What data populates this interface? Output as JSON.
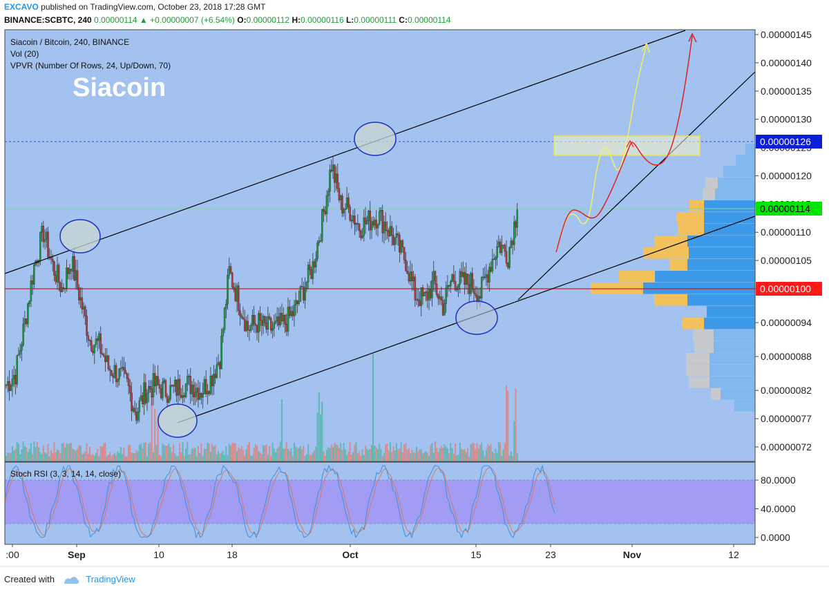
{
  "header": {
    "brand": "EXCAVO",
    "published": "published on TradingView.com, October 23, 2018 17:28 GMT",
    "symbol": "BINANCE:SCBTC, 240",
    "price": "0.00000114",
    "change": "+0.00000007 (+6.54%)",
    "o_label": "O:",
    "o_value": "0.00000112",
    "h_label": "H:",
    "h_value": "0.00000116",
    "l_label": "L:",
    "l_value": "0.00000111",
    "c_label": "C:",
    "c_value": "0.00000114"
  },
  "legend": {
    "line1": "Siacoin / Bitcoin, 240, BINANCE",
    "line2": "Vol (20)",
    "line3": "VPVR (Number Of Rows, 24, Up/Down, 70)"
  },
  "annotation_title": "Siacoin",
  "footer": {
    "created_with": "Created with",
    "brand": "TradingView"
  },
  "colors": {
    "plot_bg": "#a4c2f0",
    "candle_up": "#1a9641",
    "candle_down": "#b03a3a",
    "vpvr_up": "#3d9ae8",
    "vpvr_down": "#f2c15c",
    "vpvr_up_light": "#80b8ef",
    "vpvr_down_light": "#c7c9cc",
    "current_price_tag": "#00e600",
    "level_126_tag": "#0b1fd9",
    "level_100_tag": "#ff1a1a",
    "rsi_band": "#a39cf4",
    "stoch_k": "#3e8fe0",
    "stoch_d": "#d97a5a",
    "arrow_yellow": "#f3f061",
    "arrow_red": "#e02020"
  },
  "chart_data": [
    {
      "type": "candlestick",
      "title": "Siacoin / Bitcoin, 240, BINANCE",
      "x_ticks": [
        ":00",
        "Sep",
        "10",
        "18",
        "Oct",
        "15",
        "23",
        "Nov",
        "12"
      ],
      "y_ticks": [
        "0.00000072",
        "0.00000077",
        "0.00000082",
        "0.00000088",
        "0.00000094",
        "0.00000100",
        "0.00000105",
        "0.00000110",
        "0.00000115",
        "0.00000120",
        "0.00000125",
        "0.00000130",
        "0.00000135",
        "0.00000140",
        "0.00000145"
      ],
      "ylim": [
        7e-07,
        1.46e-06
      ],
      "price_labels": {
        "current": "0.00000114",
        "resistance": "0.00000126",
        "support": "0.00000100"
      },
      "path_points_date_close": [
        [
          "Aug 29",
          8.3e-07
        ],
        [
          "Aug 30",
          8.5e-07
        ],
        [
          "Aug 31",
          9.4e-07
        ],
        [
          "Sep 1",
          1.04e-06
        ],
        [
          "Sep 2",
          1.1e-06
        ],
        [
          "Sep 3",
          1.04e-06
        ],
        [
          "Sep 4",
          1e-06
        ],
        [
          "Sep 5",
          1.05e-06
        ],
        [
          "Sep 6",
          9.8e-07
        ],
        [
          "Sep 7",
          9.1e-07
        ],
        [
          "Sep 8",
          9e-07
        ],
        [
          "Sep 9",
          8.6e-07
        ],
        [
          "Sep 10",
          8.5e-07
        ],
        [
          "Sep 11",
          8.3e-07
        ],
        [
          "Sep 12",
          7.8e-07
        ],
        [
          "Sep 13",
          8.2e-07
        ],
        [
          "Sep 14",
          8.3e-07
        ],
        [
          "Sep 15",
          8.2e-07
        ],
        [
          "Sep 16",
          8.2e-07
        ],
        [
          "Sep 17",
          8.3e-07
        ],
        [
          "Sep 18",
          8.3e-07
        ],
        [
          "Sep 19",
          8.2e-07
        ],
        [
          "Sep 20",
          8.4e-07
        ],
        [
          "Sep 21",
          8.8e-07
        ],
        [
          "Sep 22",
          1.03e-06
        ],
        [
          "Sep 23",
          9.8e-07
        ],
        [
          "Sep 24",
          9.3e-07
        ],
        [
          "Sep 25",
          9.4e-07
        ],
        [
          "Sep 26",
          9.3e-07
        ],
        [
          "Sep 27",
          9.3e-07
        ],
        [
          "Sep 28",
          9.4e-07
        ],
        [
          "Sep 29",
          9.6e-07
        ],
        [
          "Sep 30",
          1e-06
        ],
        [
          "Oct 1",
          1.04e-06
        ],
        [
          "Oct 2",
          1.12e-06
        ],
        [
          "Oct 3",
          1.22e-06
        ],
        [
          "Oct 4",
          1.15e-06
        ],
        [
          "Oct 5",
          1.14e-06
        ],
        [
          "Oct 6",
          1.11e-06
        ],
        [
          "Oct 7",
          1.12e-06
        ],
        [
          "Oct 8",
          1.13e-06
        ],
        [
          "Oct 9",
          1.11e-06
        ],
        [
          "Oct 10",
          1.08e-06
        ],
        [
          "Oct 11",
          1.05e-06
        ],
        [
          "Oct 12",
          9.9e-07
        ],
        [
          "Oct 13",
          9.8e-07
        ],
        [
          "Oct 14",
          1.01e-06
        ],
        [
          "Oct 15",
          9.7e-07
        ],
        [
          "Oct 16",
          1.02e-06
        ],
        [
          "Oct 17",
          1.01e-06
        ],
        [
          "Oct 18",
          1.01e-06
        ],
        [
          "Oct 19",
          9.9e-07
        ],
        [
          "Oct 20",
          1.04e-06
        ],
        [
          "Oct 21",
          1.08e-06
        ],
        [
          "Oct 22",
          1.06e-06
        ],
        [
          "Oct 23",
          1.14e-06
        ]
      ]
    },
    {
      "type": "line",
      "title": "Stoch RSI (3, 3, 14, 14, close)",
      "y_ticks": [
        "0.0000",
        "40.0000",
        "80.0000"
      ],
      "ylim": [
        -5,
        105
      ],
      "bands": [
        20,
        80
      ]
    }
  ]
}
